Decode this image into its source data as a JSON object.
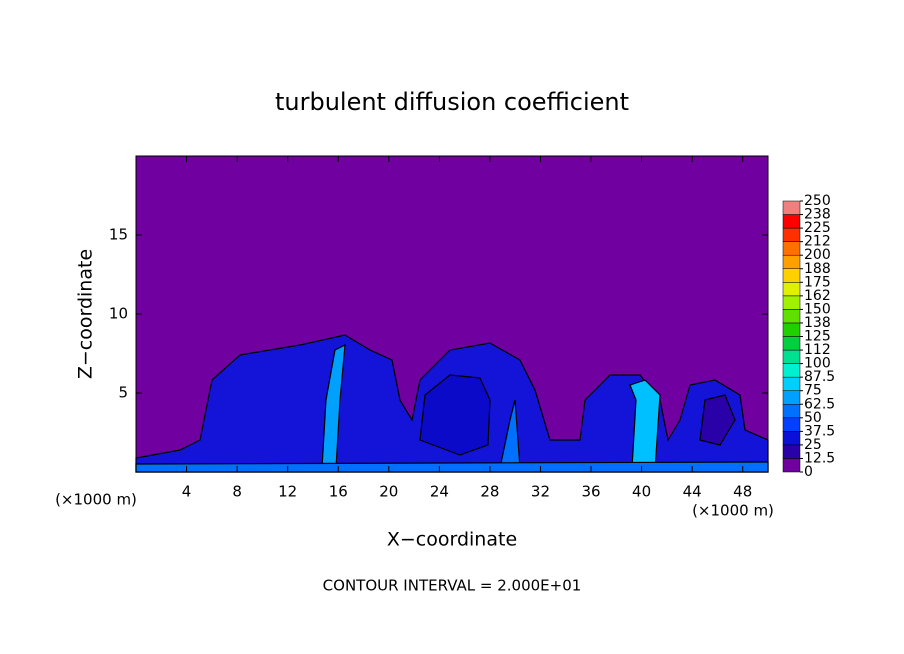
{
  "chart_data": {
    "type": "contour",
    "title": "turbulent diffusion coefficient",
    "x_label": "X−coordinate",
    "y_label": "Z−coordinate",
    "x_unit_left": "(×1000 m)",
    "x_unit_right": "(×1000 m)",
    "footer": "CONTOUR INTERVAL = 2.000E+01",
    "xlim": [
      0,
      50
    ],
    "xticks": [
      4,
      8,
      12,
      16,
      20,
      24,
      28,
      32,
      36,
      40,
      44,
      48
    ],
    "ylim": [
      0,
      20
    ],
    "yticks": [
      5,
      10,
      15
    ],
    "colorbar": {
      "lim": [
        0,
        250
      ],
      "ticks": [
        0,
        12.5,
        25,
        37.5,
        50,
        62.5,
        75,
        87.5,
        100,
        {
          "value": 112.5,
          "label": "112"
        },
        125,
        {
          "value": 137.5,
          "label": "138"
        },
        150,
        {
          "value": 162.5,
          "label": "162"
        },
        175,
        {
          "value": 187.5,
          "label": "188"
        },
        200,
        {
          "value": 212.5,
          "label": "212"
        },
        225,
        {
          "value": 237.5,
          "label": "238"
        },
        250
      ],
      "colors": [
        "#7000a0",
        "#2a00a8",
        "#0a10d8",
        "#0040ff",
        "#0070ff",
        "#00a0ff",
        "#00d0ff",
        "#00f0d0",
        "#00e090",
        "#00d040",
        "#20d000",
        "#60e000",
        "#a0f000",
        "#e0f000",
        "#ffd000",
        "#ffa000",
        "#ff7000",
        "#ff3000",
        "#ff0000",
        "#f08080"
      ]
    }
  }
}
